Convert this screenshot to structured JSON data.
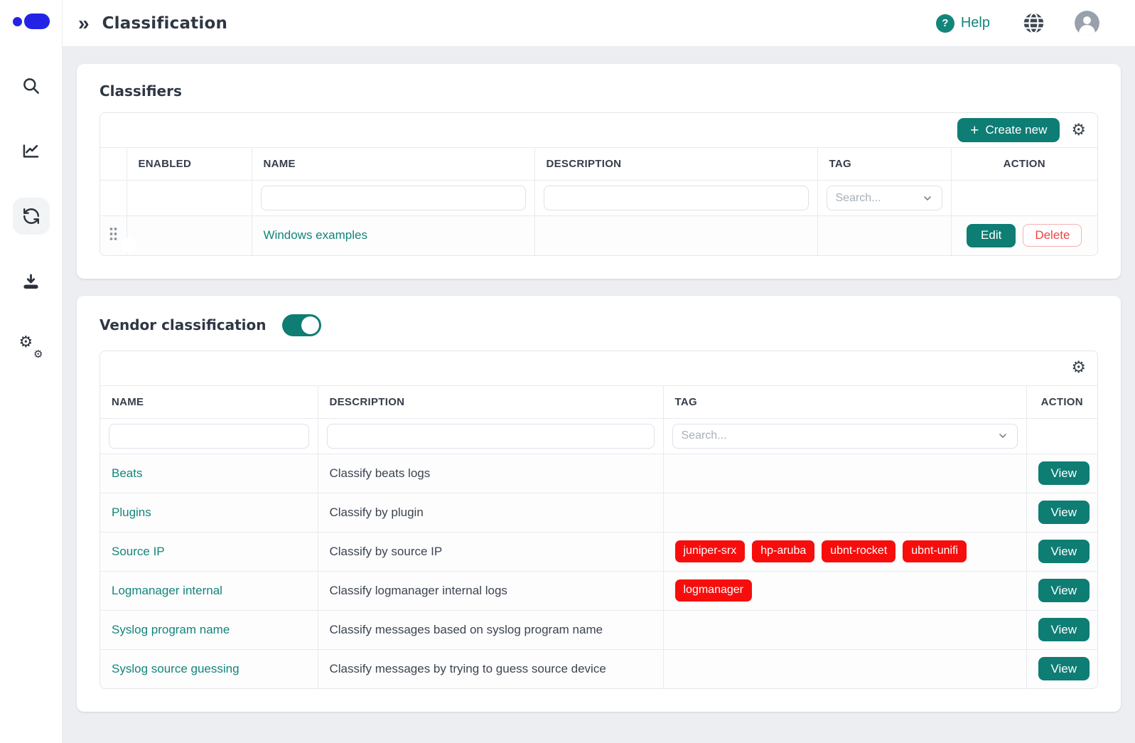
{
  "topbar": {
    "title": "Classification",
    "collapse_glyph": "»",
    "help_label": "Help",
    "help_glyph": "?"
  },
  "glyphs": {
    "plus": "+",
    "gear": "⚙"
  },
  "sidebar": {
    "items": [
      {
        "name": "search",
        "active": false
      },
      {
        "name": "dashboard-chart",
        "active": false
      },
      {
        "name": "classification",
        "active": true
      },
      {
        "name": "download",
        "active": false
      },
      {
        "name": "settings",
        "active": false
      }
    ]
  },
  "classifiers": {
    "title": "Classifiers",
    "create_button": "Create new",
    "columns": {
      "enabled": "ENABLED",
      "name": "NAME",
      "description": "DESCRIPTION",
      "tag": "TAG",
      "action": "ACTION"
    },
    "tag_filter_placeholder": "Search...",
    "edit_label": "Edit",
    "delete_label": "Delete",
    "rows": [
      {
        "name": "Windows examples",
        "enabled": true,
        "description": "",
        "tags": []
      }
    ]
  },
  "vendor": {
    "title": "Vendor classification",
    "enabled": true,
    "columns": {
      "name": "NAME",
      "description": "DESCRIPTION",
      "tag": "TAG",
      "action": "ACTION"
    },
    "tag_filter_placeholder": "Search...",
    "action_label": "View",
    "rows": [
      {
        "name": "Beats",
        "description": "Classify beats logs",
        "tags": []
      },
      {
        "name": "Plugins",
        "description": "Classify by plugin",
        "tags": []
      },
      {
        "name": "Source IP",
        "description": "Classify by source IP",
        "tags": [
          "juniper-srx",
          "hp-aruba",
          "ubnt-rocket",
          "ubnt-unifi"
        ]
      },
      {
        "name": "Logmanager internal",
        "description": "Classify logmanager internal logs",
        "tags": [
          "logmanager"
        ]
      },
      {
        "name": "Syslog program name",
        "description": "Classify messages based on syslog program name",
        "tags": []
      },
      {
        "name": "Syslog source guessing",
        "description": "Classify messages by trying to guess source device",
        "tags": []
      }
    ]
  },
  "colors": {
    "accent_teal": "#0e7d74",
    "link_teal": "#13857a",
    "tag_red": "#f80d0d",
    "brand_blue": "#2323e6",
    "page_background": "#edeef1",
    "border": "#e8eaee",
    "heading_text": "#2f3743"
  }
}
